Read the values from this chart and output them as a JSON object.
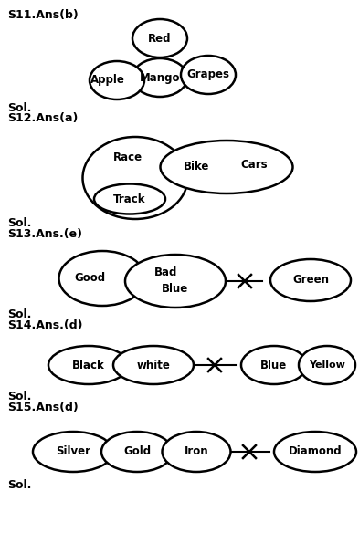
{
  "bg_color": "#ffffff",
  "text_color": "#000000",
  "lw": 1.8,
  "diagrams": [
    {
      "label": "S11.Ans(b)",
      "sol": "Sol."
    },
    {
      "label": "S12.Ans(a)",
      "sol": "Sol."
    },
    {
      "label": "S13.Ans.(e)",
      "sol": "Sol."
    },
    {
      "label": "S14.Ans.(d)",
      "sol": "Sol."
    },
    {
      "label": "S15.Ans(d)",
      "sol": "Sol."
    }
  ]
}
